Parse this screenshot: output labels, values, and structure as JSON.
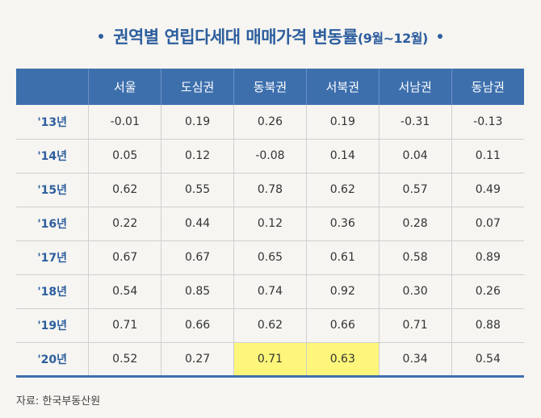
{
  "title": {
    "main": "권역별 연립다세대 매매가격 변동률",
    "sub": "(9월~12월)"
  },
  "table": {
    "headers": [
      "",
      "서울",
      "도심권",
      "동북권",
      "서북권",
      "서남권",
      "동남권"
    ],
    "rows": [
      {
        "year": "'13년",
        "cells": [
          "-0.01",
          "0.19",
          "0.26",
          "0.19",
          "-0.31",
          "-0.13"
        ]
      },
      {
        "year": "'14년",
        "cells": [
          "0.05",
          "0.12",
          "-0.08",
          "0.14",
          "0.04",
          "0.11"
        ]
      },
      {
        "year": "'15년",
        "cells": [
          "0.62",
          "0.55",
          "0.78",
          "0.62",
          "0.57",
          "0.49"
        ]
      },
      {
        "year": "'16년",
        "cells": [
          "0.22",
          "0.44",
          "0.12",
          "0.36",
          "0.28",
          "0.07"
        ]
      },
      {
        "year": "'17년",
        "cells": [
          "0.67",
          "0.67",
          "0.65",
          "0.61",
          "0.58",
          "0.89"
        ]
      },
      {
        "year": "'18년",
        "cells": [
          "0.54",
          "0.85",
          "0.74",
          "0.92",
          "0.30",
          "0.26"
        ]
      },
      {
        "year": "'19년",
        "cells": [
          "0.71",
          "0.66",
          "0.62",
          "0.66",
          "0.71",
          "0.88"
        ]
      },
      {
        "year": "'20년",
        "cells": [
          "0.52",
          "0.27",
          "0.71",
          "0.63",
          "0.34",
          "0.54"
        ]
      }
    ]
  },
  "source": "자료: 한국부동산원",
  "colors": {
    "header_bg": "#3d6fad",
    "title": "#2d5e9e",
    "highlight": "#fdf67a"
  }
}
